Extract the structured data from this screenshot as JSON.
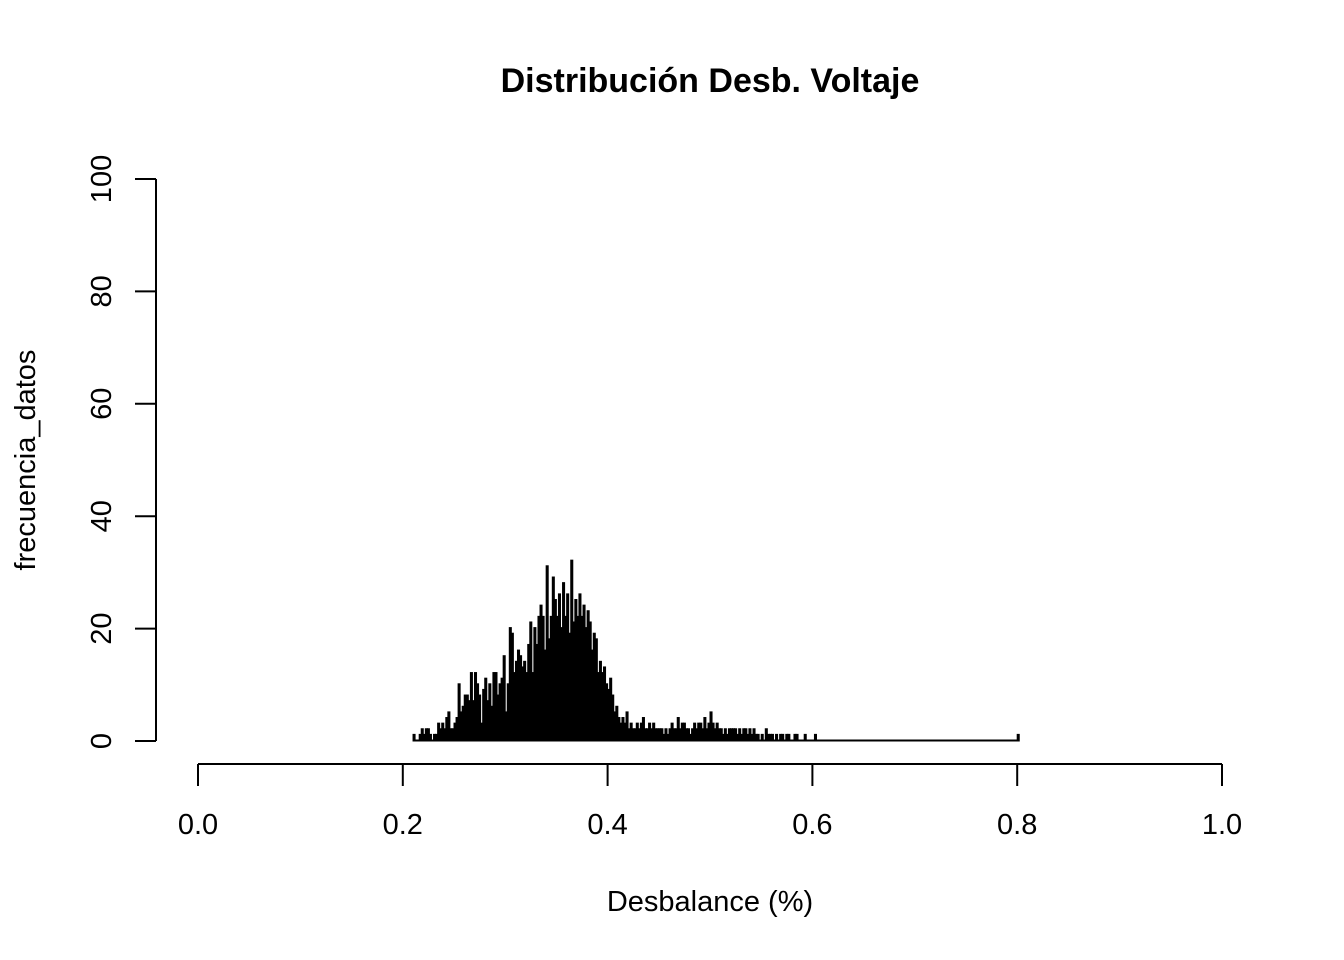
{
  "chart_data": {
    "type": "bar",
    "title": "Distribución Desb. Voltaje",
    "xlabel": "Desbalance (%)",
    "ylabel": "frecuencia_datos",
    "xlim": [
      0.0,
      1.0
    ],
    "ylim": [
      0,
      100
    ],
    "x_ticks": [
      "0.0",
      "0.2",
      "0.4",
      "0.6",
      "0.8",
      "1.0"
    ],
    "y_ticks": [
      "0",
      "20",
      "40",
      "60",
      "80",
      "100"
    ],
    "bar_color": "#000000",
    "grid": false,
    "bin_start": 0.21,
    "bin_width": 0.002,
    "counts": [
      1,
      0,
      0,
      1,
      2,
      1,
      2,
      2,
      1,
      0,
      1,
      1,
      3,
      2,
      3,
      2,
      4,
      5,
      2,
      2,
      3,
      4,
      10,
      5,
      6,
      8,
      8,
      7,
      12,
      7,
      12,
      10,
      8,
      3,
      9,
      11,
      7,
      10,
      6,
      12,
      12,
      8,
      10,
      11,
      15,
      5,
      10,
      20,
      19,
      12,
      14,
      16,
      15,
      13,
      14,
      12,
      17,
      21,
      12,
      20,
      17,
      22,
      24,
      22,
      16,
      31,
      18,
      22,
      29,
      25,
      22,
      26,
      20,
      28,
      22,
      26,
      19,
      32,
      21,
      25,
      22,
      26,
      22,
      24,
      20,
      23,
      21,
      16,
      19,
      18,
      12,
      14,
      12,
      13,
      10,
      9,
      11,
      8,
      5,
      6,
      4,
      3,
      4,
      3,
      5,
      2,
      3,
      2,
      2,
      3,
      2,
      3,
      4,
      2,
      2,
      3,
      2,
      3,
      2,
      2,
      2,
      2,
      1,
      2,
      1,
      2,
      3,
      2,
      2,
      4,
      2,
      3,
      3,
      2,
      2,
      1,
      2,
      3,
      2,
      3,
      3,
      2,
      4,
      2,
      3,
      5,
      3,
      2,
      3,
      2,
      2,
      1,
      2,
      1,
      2,
      2,
      2,
      2,
      1,
      2,
      1,
      2,
      2,
      1,
      2,
      1,
      2,
      1,
      1,
      0,
      1,
      0,
      2,
      1,
      1,
      1,
      0,
      1,
      0,
      1,
      1,
      0,
      1,
      1,
      0,
      0,
      1,
      1,
      0,
      0,
      0,
      1,
      0,
      0,
      0,
      0,
      1,
      0,
      0,
      0,
      0,
      0,
      0,
      0,
      0,
      0,
      0,
      0,
      0,
      0,
      0,
      0,
      0,
      0,
      0,
      0,
      0,
      0,
      0,
      0,
      0,
      0,
      0,
      0,
      0,
      0,
      0,
      0,
      0,
      0,
      0,
      0,
      0,
      0,
      0,
      0,
      0,
      0,
      0,
      0,
      0,
      0,
      0,
      0,
      0,
      0,
      0,
      0,
      0,
      0,
      0,
      0,
      0,
      0,
      0,
      0,
      0,
      0,
      0,
      0,
      0,
      0,
      0,
      0,
      0,
      0,
      0,
      0,
      0,
      0,
      0,
      0,
      0,
      0,
      0,
      0,
      0,
      0,
      0,
      0,
      0,
      0,
      0,
      0,
      0,
      0,
      0,
      0,
      0,
      0,
      0,
      0,
      0,
      0,
      0,
      1
    ]
  }
}
